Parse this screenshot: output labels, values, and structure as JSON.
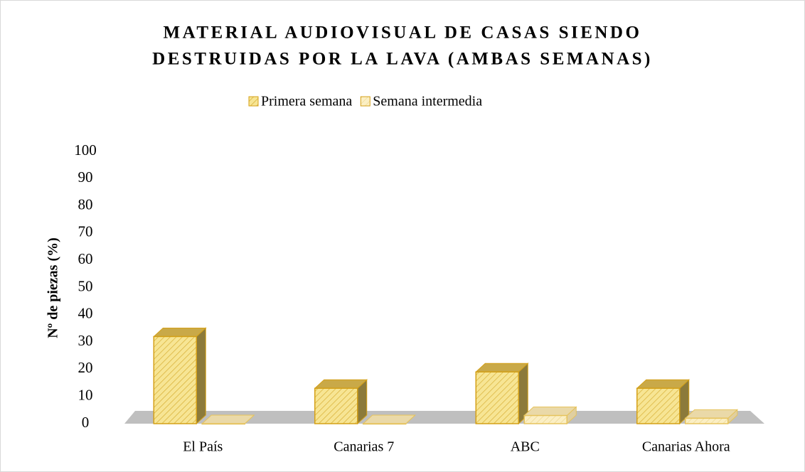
{
  "chart_data": {
    "type": "bar3d",
    "title": [
      "MATERIAL AUDIOVISUAL DE CASAS SIENDO",
      "DESTRUIDAS POR LA LAVA (AMBAS SEMANAS)"
    ],
    "y_label": "Nº de piezas (%)",
    "categories": [
      "El País",
      "Canarias 7",
      "ABC",
      "Canarias Ahora"
    ],
    "series": [
      {
        "name": "Primera semana",
        "color": "#f7e594",
        "values": [
          32,
          13,
          19,
          13
        ]
      },
      {
        "name": "Semana intermedia",
        "color": "#fbefc4",
        "values": [
          0,
          0,
          3,
          2
        ]
      }
    ],
    "ylim": [
      0,
      100
    ],
    "yticks": [
      0,
      10,
      20,
      30,
      40,
      50,
      60,
      70,
      80,
      90,
      100
    ],
    "grid": false,
    "legend": "top"
  }
}
